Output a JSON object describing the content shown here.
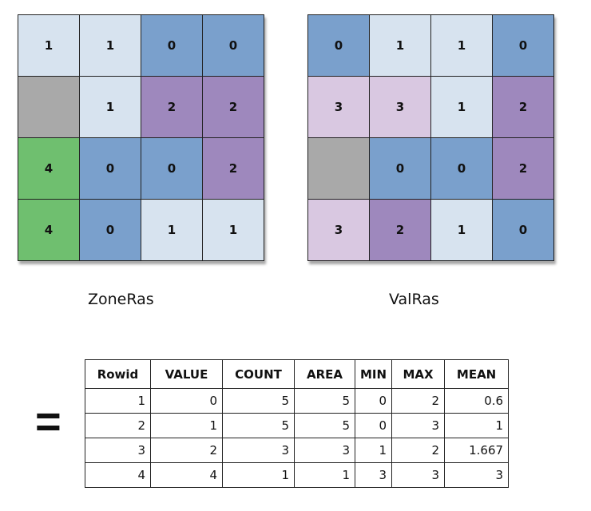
{
  "zone_raster": {
    "name": "ZoneRas",
    "cells": [
      [
        "1",
        "1",
        "0",
        "0"
      ],
      [
        "",
        "1",
        "2",
        "2"
      ],
      [
        "4",
        "0",
        "0",
        "2"
      ],
      [
        "4",
        "0",
        "1",
        "1"
      ]
    ]
  },
  "value_raster": {
    "name": "ValRas",
    "cells": [
      [
        "0",
        "1",
        "1",
        "0"
      ],
      [
        "3",
        "3",
        "1",
        "2"
      ],
      [
        "",
        "0",
        "0",
        "2"
      ],
      [
        "3",
        "2",
        "1",
        "0"
      ]
    ]
  },
  "zone_colors": {
    "0": "#7aa0cc",
    "1": "#d7e3ef",
    "2": "#9e88bd",
    "3": "#d9c8e1",
    "4": "#6fbf6f",
    "nodata": "#a9a9a9"
  },
  "value_colors": {
    "0": "#7aa0cc",
    "1": "#d7e3ef",
    "2": "#9e88bd",
    "3": "#d9c8e1",
    "4": "#6fbf6f",
    "nodata": "#a9a9a9"
  },
  "operator": "=",
  "table": {
    "headers": [
      "Rowid",
      "VALUE",
      "COUNT",
      "AREA",
      "MIN",
      "MAX",
      "MEAN"
    ],
    "rows": [
      [
        "1",
        "0",
        "5",
        "5",
        "0",
        "2",
        "0.6"
      ],
      [
        "2",
        "1",
        "5",
        "5",
        "0",
        "3",
        "1"
      ],
      [
        "3",
        "2",
        "3",
        "3",
        "1",
        "2",
        "1.667"
      ],
      [
        "4",
        "4",
        "1",
        "1",
        "3",
        "3",
        "3"
      ]
    ]
  }
}
